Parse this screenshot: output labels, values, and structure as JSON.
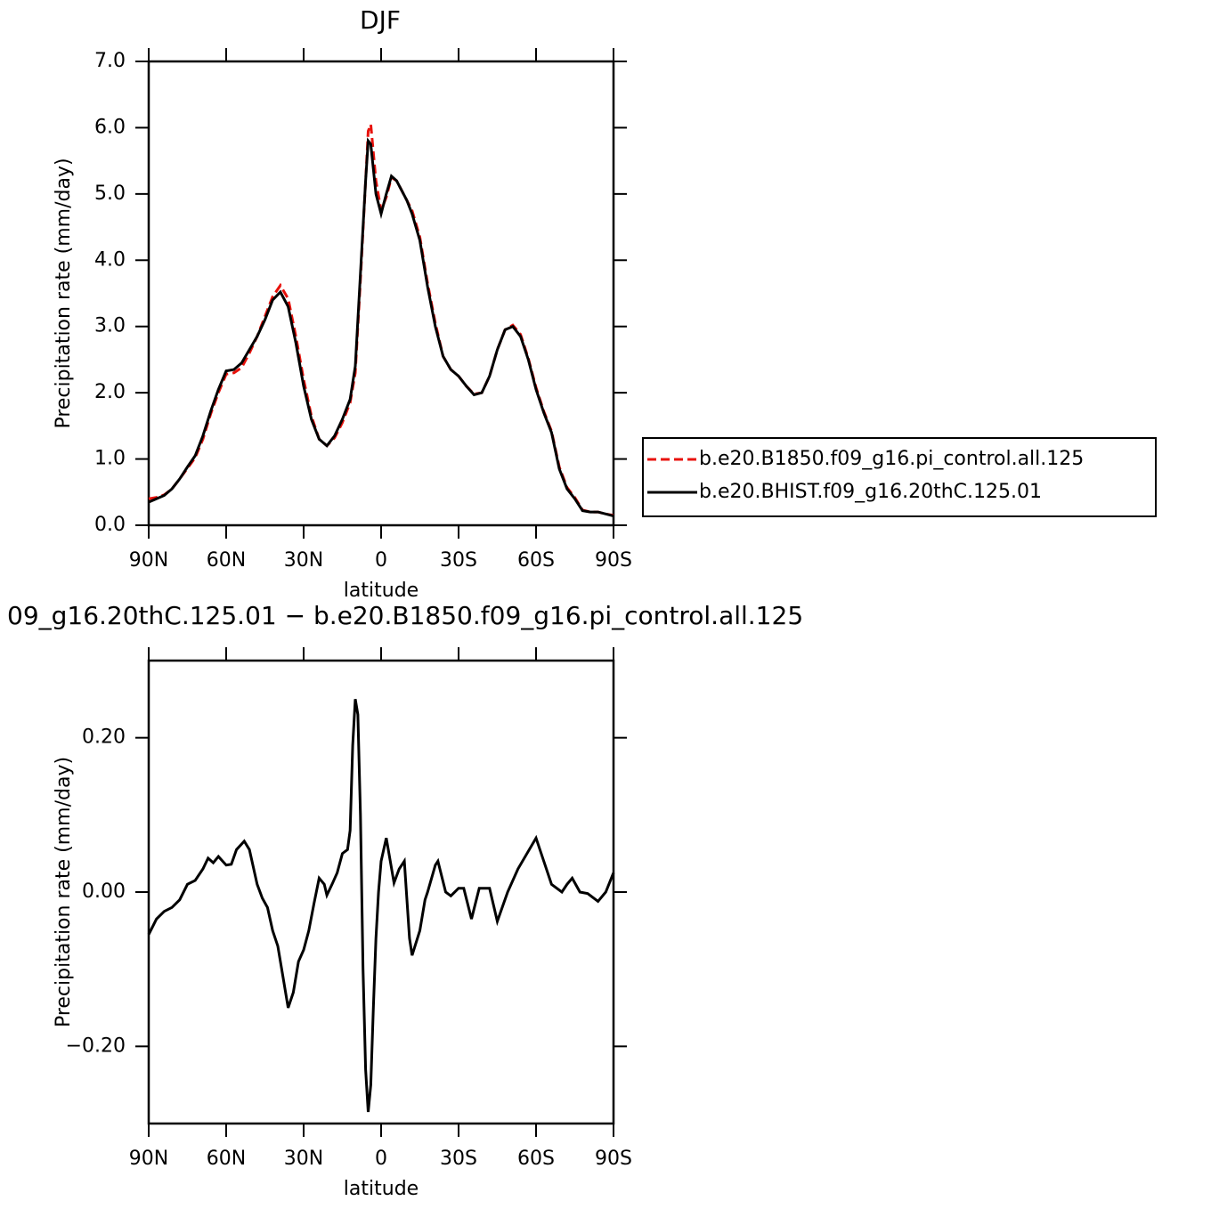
{
  "chart_data": [
    {
      "type": "line",
      "title": "DJF",
      "xlabel": "latitude",
      "ylabel": "Precipitation rate (mm/day)",
      "x": [
        90,
        87,
        84,
        81,
        78,
        75,
        72,
        69,
        66,
        63,
        60,
        57,
        54,
        51,
        48,
        45,
        42,
        39,
        36,
        33,
        30,
        27,
        24,
        21,
        18,
        15,
        12,
        10,
        8,
        6,
        5,
        4,
        2,
        0,
        -2,
        -4,
        -6,
        -8,
        -10,
        -12,
        -15,
        -18,
        -21,
        -24,
        -27,
        -30,
        -33,
        -36,
        -39,
        -42,
        -45,
        -48,
        -51,
        -54,
        -57,
        -60,
        -63,
        -66,
        -69,
        -72,
        -75,
        -78,
        -81,
        -84,
        -87,
        -90
      ],
      "series": [
        {
          "name": "b.e20.B1850.f09_g16.pi_control.all.125",
          "color": "#e8120c",
          "dash": true,
          "values": [
            0.4,
            0.42,
            0.46,
            0.55,
            0.7,
            0.86,
            1.02,
            1.3,
            1.68,
            2.0,
            2.28,
            2.3,
            2.38,
            2.6,
            2.85,
            3.15,
            3.45,
            3.62,
            3.42,
            2.85,
            2.2,
            1.65,
            1.3,
            1.2,
            1.32,
            1.55,
            1.85,
            2.3,
            3.7,
            5.2,
            5.95,
            6.05,
            5.2,
            4.75,
            4.95,
            5.25,
            5.2,
            5.05,
            4.9,
            4.75,
            4.35,
            3.65,
            3.05,
            2.55,
            2.35,
            2.25,
            2.1,
            1.98,
            2.0,
            2.25,
            2.65,
            2.95,
            3.02,
            2.88,
            2.52,
            2.08,
            1.72,
            1.42,
            0.88,
            0.57,
            0.42,
            0.23,
            0.2,
            0.2,
            0.17,
            0.15
          ]
        },
        {
          "name": "b.e20.BHIST.f09_g16.20thC.125.01",
          "color": "#000000",
          "dash": false,
          "values": [
            0.35,
            0.4,
            0.45,
            0.55,
            0.7,
            0.88,
            1.05,
            1.35,
            1.72,
            2.05,
            2.33,
            2.35,
            2.45,
            2.65,
            2.85,
            3.1,
            3.4,
            3.52,
            3.3,
            2.75,
            2.1,
            1.6,
            1.3,
            1.2,
            1.35,
            1.6,
            1.9,
            2.4,
            3.8,
            5.2,
            5.8,
            5.75,
            5.0,
            4.7,
            5.0,
            5.27,
            5.2,
            5.05,
            4.9,
            4.7,
            4.3,
            3.6,
            3.0,
            2.55,
            2.35,
            2.25,
            2.1,
            1.97,
            2.0,
            2.25,
            2.65,
            2.95,
            3.0,
            2.85,
            2.5,
            2.05,
            1.7,
            1.4,
            0.85,
            0.55,
            0.4,
            0.22,
            0.2,
            0.2,
            0.17,
            0.14
          ]
        }
      ],
      "xlim": [
        90,
        -90
      ],
      "xticks": [
        {
          "value": 90,
          "label": "90N"
        },
        {
          "value": 60,
          "label": "60N"
        },
        {
          "value": 30,
          "label": "30N"
        },
        0,
        {
          "value": -30,
          "label": "30S"
        },
        {
          "value": -60,
          "label": "60S"
        },
        {
          "value": -90,
          "label": "90S"
        }
      ],
      "ylim": [
        0,
        7
      ],
      "yticks": [
        {
          "value": 0,
          "label": "0.0"
        },
        {
          "value": 1,
          "label": "1.0"
        },
        {
          "value": 2,
          "label": "2.0"
        },
        {
          "value": 3,
          "label": "3.0"
        },
        {
          "value": 4,
          "label": "4.0"
        },
        {
          "value": 5,
          "label": "5.0"
        },
        {
          "value": 6,
          "label": "6.0"
        },
        {
          "value": 7,
          "label": "7.0"
        }
      ],
      "legend": "right"
    },
    {
      "type": "line",
      "title": "09_g16.20thC.125.01 − b.e20.B1850.f09_g16.pi_control.all.125",
      "xlabel": "latitude",
      "ylabel": "Precipitation rate (mm/day)",
      "x": [
        90,
        87,
        84,
        81,
        78,
        75,
        72,
        69,
        67,
        65,
        63,
        60,
        58,
        56,
        53,
        51,
        48,
        46,
        44,
        42,
        40,
        38,
        36,
        34,
        32,
        30,
        28,
        26,
        24,
        22,
        21,
        19,
        17,
        15,
        13,
        12,
        11,
        10,
        9,
        8,
        7,
        6,
        5,
        4,
        3,
        2,
        1,
        0,
        -2,
        -5,
        -7,
        -9,
        -11,
        -12,
        -15,
        -17,
        -18,
        -21,
        -22,
        -25,
        -27,
        -30,
        -32,
        -35,
        -38,
        -42,
        -45,
        -49,
        -53,
        -60,
        -63,
        -66,
        -70,
        -72,
        -74,
        -77,
        -80,
        -84,
        -87,
        -90
      ],
      "values": [
        -0.055,
        -0.035,
        -0.025,
        -0.02,
        -0.01,
        0.01,
        0.015,
        0.03,
        0.044,
        0.038,
        0.046,
        0.035,
        0.036,
        0.055,
        0.066,
        0.055,
        0.01,
        -0.008,
        -0.02,
        -0.05,
        -0.07,
        -0.11,
        -0.15,
        -0.13,
        -0.09,
        -0.075,
        -0.05,
        -0.015,
        0.018,
        0.01,
        -0.004,
        0.01,
        0.025,
        0.05,
        0.055,
        0.08,
        0.19,
        0.25,
        0.23,
        0.1,
        -0.1,
        -0.23,
        -0.285,
        -0.25,
        -0.15,
        -0.06,
        0.0,
        0.04,
        0.07,
        0.012,
        0.03,
        0.04,
        -0.06,
        -0.082,
        -0.05,
        -0.01,
        0.0,
        0.035,
        0.04,
        0.0,
        -0.005,
        0.005,
        0.005,
        -0.035,
        0.005,
        0.005,
        -0.038,
        0.0,
        0.03,
        0.07,
        0.04,
        0.01,
        0.0,
        0.01,
        0.018,
        0.0,
        -0.002,
        -0.012,
        0.0,
        0.025
      ],
      "color": "#000000",
      "xlim": [
        90,
        -90
      ],
      "xticks": [
        {
          "value": 90,
          "label": "90N"
        },
        {
          "value": 60,
          "label": "60N"
        },
        {
          "value": 30,
          "label": "30N"
        },
        0,
        {
          "value": -30,
          "label": "30S"
        },
        {
          "value": -60,
          "label": "60S"
        },
        {
          "value": -90,
          "label": "90S"
        }
      ],
      "ylim": [
        -0.3,
        0.3
      ],
      "yticks": [
        {
          "value": -0.2,
          "label": "−0.20"
        },
        {
          "value": 0,
          "label": "0.00"
        },
        {
          "value": 0.2,
          "label": "0.20"
        }
      ]
    }
  ]
}
